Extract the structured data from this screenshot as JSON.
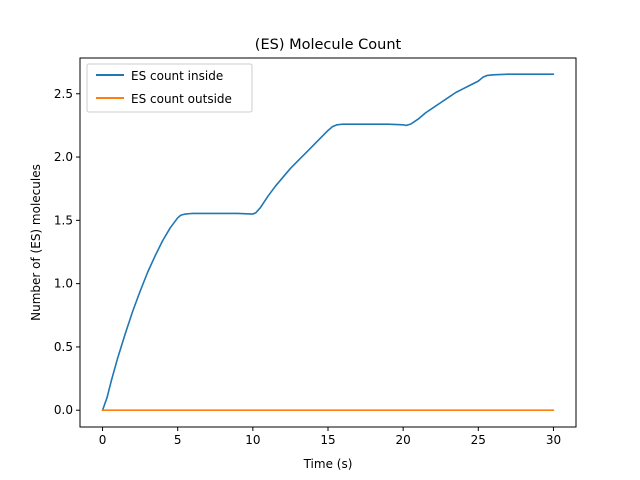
{
  "chart_data": {
    "type": "line",
    "title": "(ES) Molecule Count",
    "xlabel": "Time (s)",
    "ylabel": "Number of (ES) molecules",
    "xlim": [
      -1.5,
      31.5
    ],
    "ylim": [
      -0.1325,
      2.7825
    ],
    "xticks": [
      0,
      5,
      10,
      15,
      20,
      25,
      30
    ],
    "yticks": [
      0.0,
      0.5,
      1.0,
      1.5,
      2.0,
      2.5
    ],
    "xtick_labels": [
      "0",
      "5",
      "10",
      "15",
      "20",
      "25",
      "30"
    ],
    "ytick_labels": [
      "0.0",
      "0.5",
      "1.0",
      "1.5",
      "2.0",
      "2.5"
    ],
    "grid": false,
    "legend_position": "top-left",
    "series": [
      {
        "name": "ES count inside",
        "color": "#1f77b4",
        "x": [
          0,
          0.3,
          0.6,
          1,
          1.5,
          2,
          2.5,
          3,
          3.5,
          4,
          4.5,
          5,
          5.2,
          5.5,
          6,
          7,
          8,
          9,
          10,
          10.2,
          10.5,
          11,
          11.5,
          12,
          12.5,
          13,
          13.5,
          14,
          14.5,
          15,
          15.3,
          15.6,
          16,
          17,
          18,
          19,
          20,
          20.2,
          20.5,
          21,
          21.5,
          22,
          22.5,
          23,
          23.5,
          24,
          24.5,
          25,
          25.3,
          25.6,
          26,
          27,
          28,
          29,
          30
        ],
        "y": [
          0.0,
          0.1,
          0.24,
          0.41,
          0.6,
          0.78,
          0.94,
          1.09,
          1.22,
          1.34,
          1.44,
          1.52,
          1.54,
          1.55,
          1.555,
          1.555,
          1.555,
          1.555,
          1.55,
          1.56,
          1.6,
          1.69,
          1.77,
          1.84,
          1.91,
          1.97,
          2.03,
          2.09,
          2.15,
          2.21,
          2.24,
          2.255,
          2.26,
          2.26,
          2.26,
          2.26,
          2.255,
          2.25,
          2.26,
          2.3,
          2.35,
          2.39,
          2.43,
          2.47,
          2.51,
          2.54,
          2.57,
          2.6,
          2.63,
          2.645,
          2.65,
          2.655,
          2.655,
          2.655,
          2.655
        ]
      },
      {
        "name": "ES count outside",
        "color": "#ff7f0e",
        "x": [
          0,
          5,
          10,
          15,
          20,
          25,
          30
        ],
        "y": [
          0,
          0,
          0,
          0,
          0,
          0,
          0
        ]
      }
    ]
  }
}
